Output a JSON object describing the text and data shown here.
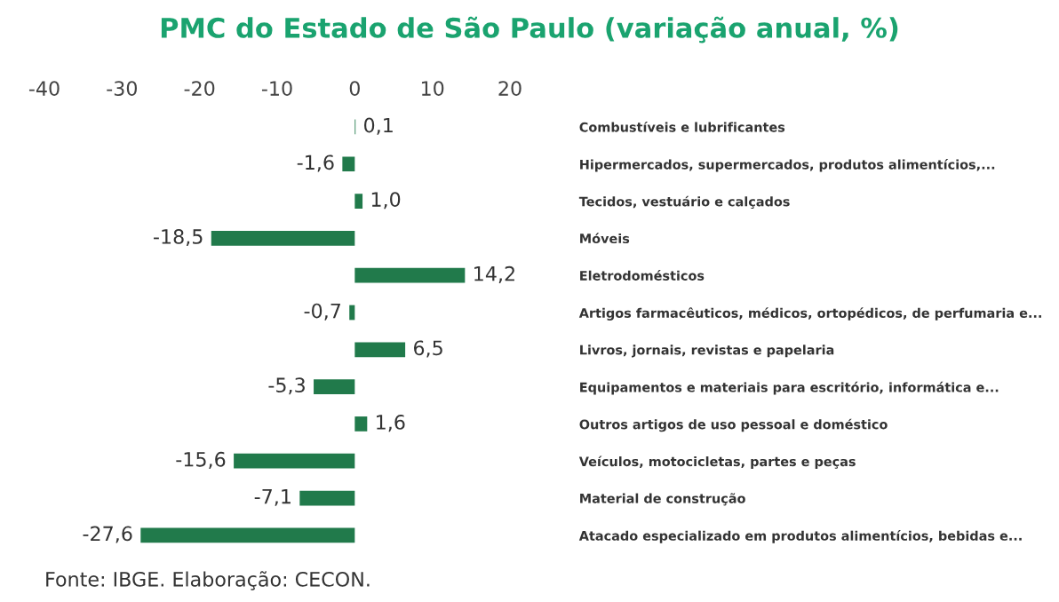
{
  "chart_data": {
    "type": "bar",
    "orientation": "horizontal",
    "title": "PMC do Estado de São Paulo (variação anual, %)",
    "categories": [
      "Combustíveis e lubrificantes",
      "Hipermercados, supermercados, produtos alimentícios,...",
      "Tecidos, vestuário e calçados",
      "Móveis",
      "Eletrodomésticos",
      "Artigos farmacêuticos, médicos, ortopédicos, de perfumaria e...",
      "Livros, jornais, revistas e papelaria",
      "Equipamentos e materiais para escritório, informática e...",
      "Outros artigos de uso pessoal e doméstico",
      "Veículos, motocicletas, partes e peças",
      "Material de construção",
      "Atacado especializado em produtos alimentícios, bebidas e..."
    ],
    "values": [
      0.1,
      -1.6,
      1.0,
      -18.5,
      14.2,
      -0.7,
      6.5,
      -5.3,
      1.6,
      -15.6,
      -7.1,
      -27.6
    ],
    "value_labels": [
      "0,1",
      "-1,6",
      "1,0",
      "-18,5",
      "14,2",
      "-0,7",
      "6,5",
      "-5,3",
      "1,6",
      "-15,6",
      "-7,1",
      "-27,6"
    ],
    "color": "#217a4b",
    "xlim": [
      -40,
      20
    ],
    "xticks": [
      -40,
      -30,
      -20,
      -10,
      0,
      10,
      20
    ],
    "grid": false,
    "legend": false,
    "annotations": [
      "Fonte: IBGE. Elaboração: CECON."
    ]
  }
}
